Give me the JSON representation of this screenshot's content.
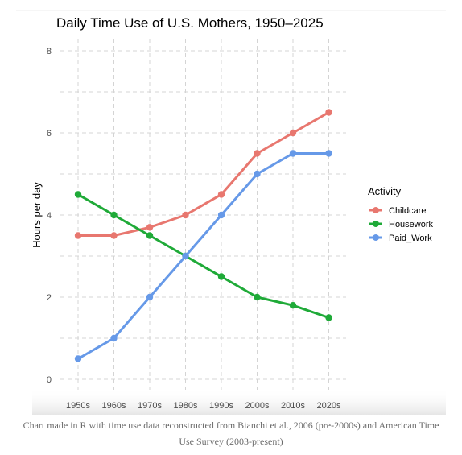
{
  "caption": "Chart made in R with time use data reconstructed from Bianchi et al., 2006 (pre-2000s) and American Time Use Survey (2003-present)",
  "chart_data": {
    "type": "line",
    "title": "Daily Time Use of U.S. Mothers, 1950–2025",
    "xlabel": "",
    "ylabel": "Hours per day",
    "categories": [
      "1950s",
      "1960s",
      "1970s",
      "1980s",
      "1990s",
      "2000s",
      "2010s",
      "2020s"
    ],
    "ylim": [
      0,
      8
    ],
    "yticks": [
      "0",
      "2",
      "4",
      "6",
      "8"
    ],
    "grid": true,
    "legend_position": "right",
    "legend_title": "Activity",
    "series": [
      {
        "name": "Childcare",
        "color": "#E8776F",
        "values": [
          3.5,
          3.5,
          3.7,
          4.0,
          4.5,
          5.5,
          6.0,
          6.5
        ]
      },
      {
        "name": "Housework",
        "color": "#1FAA38",
        "values": [
          4.5,
          4.0,
          3.5,
          3.0,
          2.5,
          2.0,
          1.8,
          1.5
        ]
      },
      {
        "name": "Paid_Work",
        "color": "#6699E8",
        "values": [
          0.5,
          1.0,
          2.0,
          3.0,
          4.0,
          5.0,
          5.5,
          5.5
        ]
      }
    ]
  }
}
